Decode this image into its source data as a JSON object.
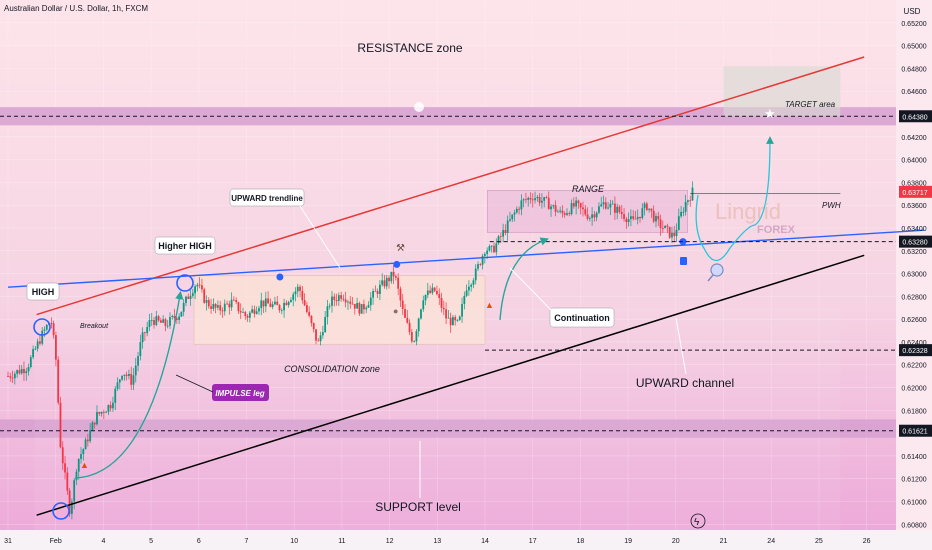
{
  "header": {
    "symbol_title": "Australian Dollar / U.S. Dollar, 1h, FXCM",
    "currency": "USD"
  },
  "watermark": {
    "brand": "Lingrid",
    "sub": "FOREX"
  },
  "colors": {
    "bull": "#089981",
    "bear": "#f23645",
    "resistance_line": "#e53935",
    "trend_line": "#2962ff",
    "channel_line": "#000000",
    "zone_fill": "#d69fd0",
    "arrow": "#26a69a",
    "price_tag": "#f23645",
    "level_tag": "#131722"
  },
  "chart_data": {
    "type": "candlestick",
    "title": "",
    "xlabel": "",
    "ylabel": "",
    "ylim": [
      0.6075,
      0.654
    ],
    "x_ticks": [
      "31",
      "Feb",
      "4",
      "5",
      "6",
      "7",
      "10",
      "11",
      "12",
      "13",
      "14",
      "17",
      "18",
      "19",
      "20",
      "21",
      "24",
      "25",
      "26"
    ],
    "y_ticks": [
      "0.60800",
      "0.61000",
      "0.61200",
      "0.61400",
      "0.61600",
      "0.61800",
      "0.62000",
      "0.62200",
      "0.62400",
      "0.62600",
      "0.62800",
      "0.63000",
      "0.63200",
      "0.63400",
      "0.63600",
      "0.63800",
      "0.64000",
      "0.64200",
      "0.64400",
      "0.64600",
      "0.64800",
      "0.65000",
      "0.65200"
    ],
    "levels": [
      {
        "label": "0.64380",
        "value": 0.6438
      },
      {
        "label": "0.63280",
        "value": 0.6328
      },
      {
        "label": "0.62328",
        "value": 0.62328
      },
      {
        "label": "0.61621",
        "value": 0.61621
      }
    ],
    "last_price": {
      "label": "0.63717",
      "value": 0.63717
    },
    "zones": [
      {
        "name": "resistance",
        "from": 0.643,
        "to": 0.6446
      },
      {
        "name": "support",
        "from": 0.6156,
        "to": 0.6172
      }
    ],
    "lines": [
      {
        "name": "resistance-line",
        "from": {
          "x": 0.6,
          "y": 0.6264
        },
        "to": {
          "x": 17.95,
          "y": 0.649
        }
      },
      {
        "name": "upward-trendline",
        "from": {
          "x": 0.0,
          "y": 0.6288
        },
        "to": {
          "x": 19.2,
          "y": 0.6338
        }
      },
      {
        "name": "channel-bottom",
        "from": {
          "x": 0.6,
          "y": 0.6088
        },
        "to": {
          "x": 17.95,
          "y": 0.6316
        }
      }
    ],
    "annotations": {
      "resistance_zone": "RESISTANCE zone",
      "target_area": "TARGET area",
      "range": "RANGE",
      "pwh": "PWH",
      "high": "HIGH",
      "breakout": "Breakout",
      "higher_high": "Higher HIGH",
      "upward_trendline": "UPWARD trendline",
      "consolidation_zone": "CONSOLIDATION zone",
      "continuation": "Continuation",
      "impulse_leg": "IMPULSE leg",
      "upward_channel": "UPWARD channel",
      "support_level": "SUPPORT level"
    },
    "path": [
      [
        0.0,
        0.621
      ],
      [
        0.4,
        0.6218
      ],
      [
        0.7,
        0.6245
      ],
      [
        0.9,
        0.626
      ],
      [
        1.0,
        0.6228
      ],
      [
        1.1,
        0.615
      ],
      [
        1.2,
        0.612
      ],
      [
        1.3,
        0.6091
      ],
      [
        1.45,
        0.6135
      ],
      [
        1.6,
        0.6148
      ],
      [
        1.85,
        0.6175
      ],
      [
        2.15,
        0.6185
      ],
      [
        2.4,
        0.6215
      ],
      [
        2.6,
        0.6205
      ],
      [
        2.8,
        0.6242
      ],
      [
        3.0,
        0.626
      ],
      [
        3.3,
        0.6255
      ],
      [
        3.6,
        0.6265
      ],
      [
        3.8,
        0.6282
      ],
      [
        3.95,
        0.6292
      ],
      [
        4.15,
        0.6275
      ],
      [
        4.4,
        0.6268
      ],
      [
        4.7,
        0.6275
      ],
      [
        5.0,
        0.6262
      ],
      [
        5.3,
        0.6275
      ],
      [
        5.7,
        0.627
      ],
      [
        6.1,
        0.6288
      ],
      [
        6.3,
        0.6262
      ],
      [
        6.5,
        0.6238
      ],
      [
        6.75,
        0.6275
      ],
      [
        7.0,
        0.6282
      ],
      [
        7.4,
        0.6268
      ],
      [
        7.8,
        0.6288
      ],
      [
        8.1,
        0.63
      ],
      [
        8.3,
        0.6262
      ],
      [
        8.5,
        0.624
      ],
      [
        8.7,
        0.628
      ],
      [
        8.95,
        0.6285
      ],
      [
        9.2,
        0.626
      ],
      [
        9.45,
        0.6255
      ],
      [
        9.6,
        0.6288
      ],
      [
        9.8,
        0.63
      ],
      [
        10.0,
        0.6322
      ],
      [
        10.15,
        0.632
      ],
      [
        10.3,
        0.633
      ],
      [
        10.55,
        0.6348
      ],
      [
        10.75,
        0.6362
      ],
      [
        11.0,
        0.6368
      ],
      [
        11.3,
        0.6362
      ],
      [
        11.6,
        0.6352
      ],
      [
        11.9,
        0.636
      ],
      [
        12.2,
        0.635
      ],
      [
        12.5,
        0.6362
      ],
      [
        12.8,
        0.6355
      ],
      [
        13.1,
        0.6345
      ],
      [
        13.4,
        0.636
      ],
      [
        13.6,
        0.6345
      ],
      [
        13.8,
        0.6338
      ],
      [
        13.95,
        0.6332
      ],
      [
        14.05,
        0.6345
      ],
      [
        14.2,
        0.6362
      ],
      [
        14.35,
        0.63717
      ]
    ]
  }
}
